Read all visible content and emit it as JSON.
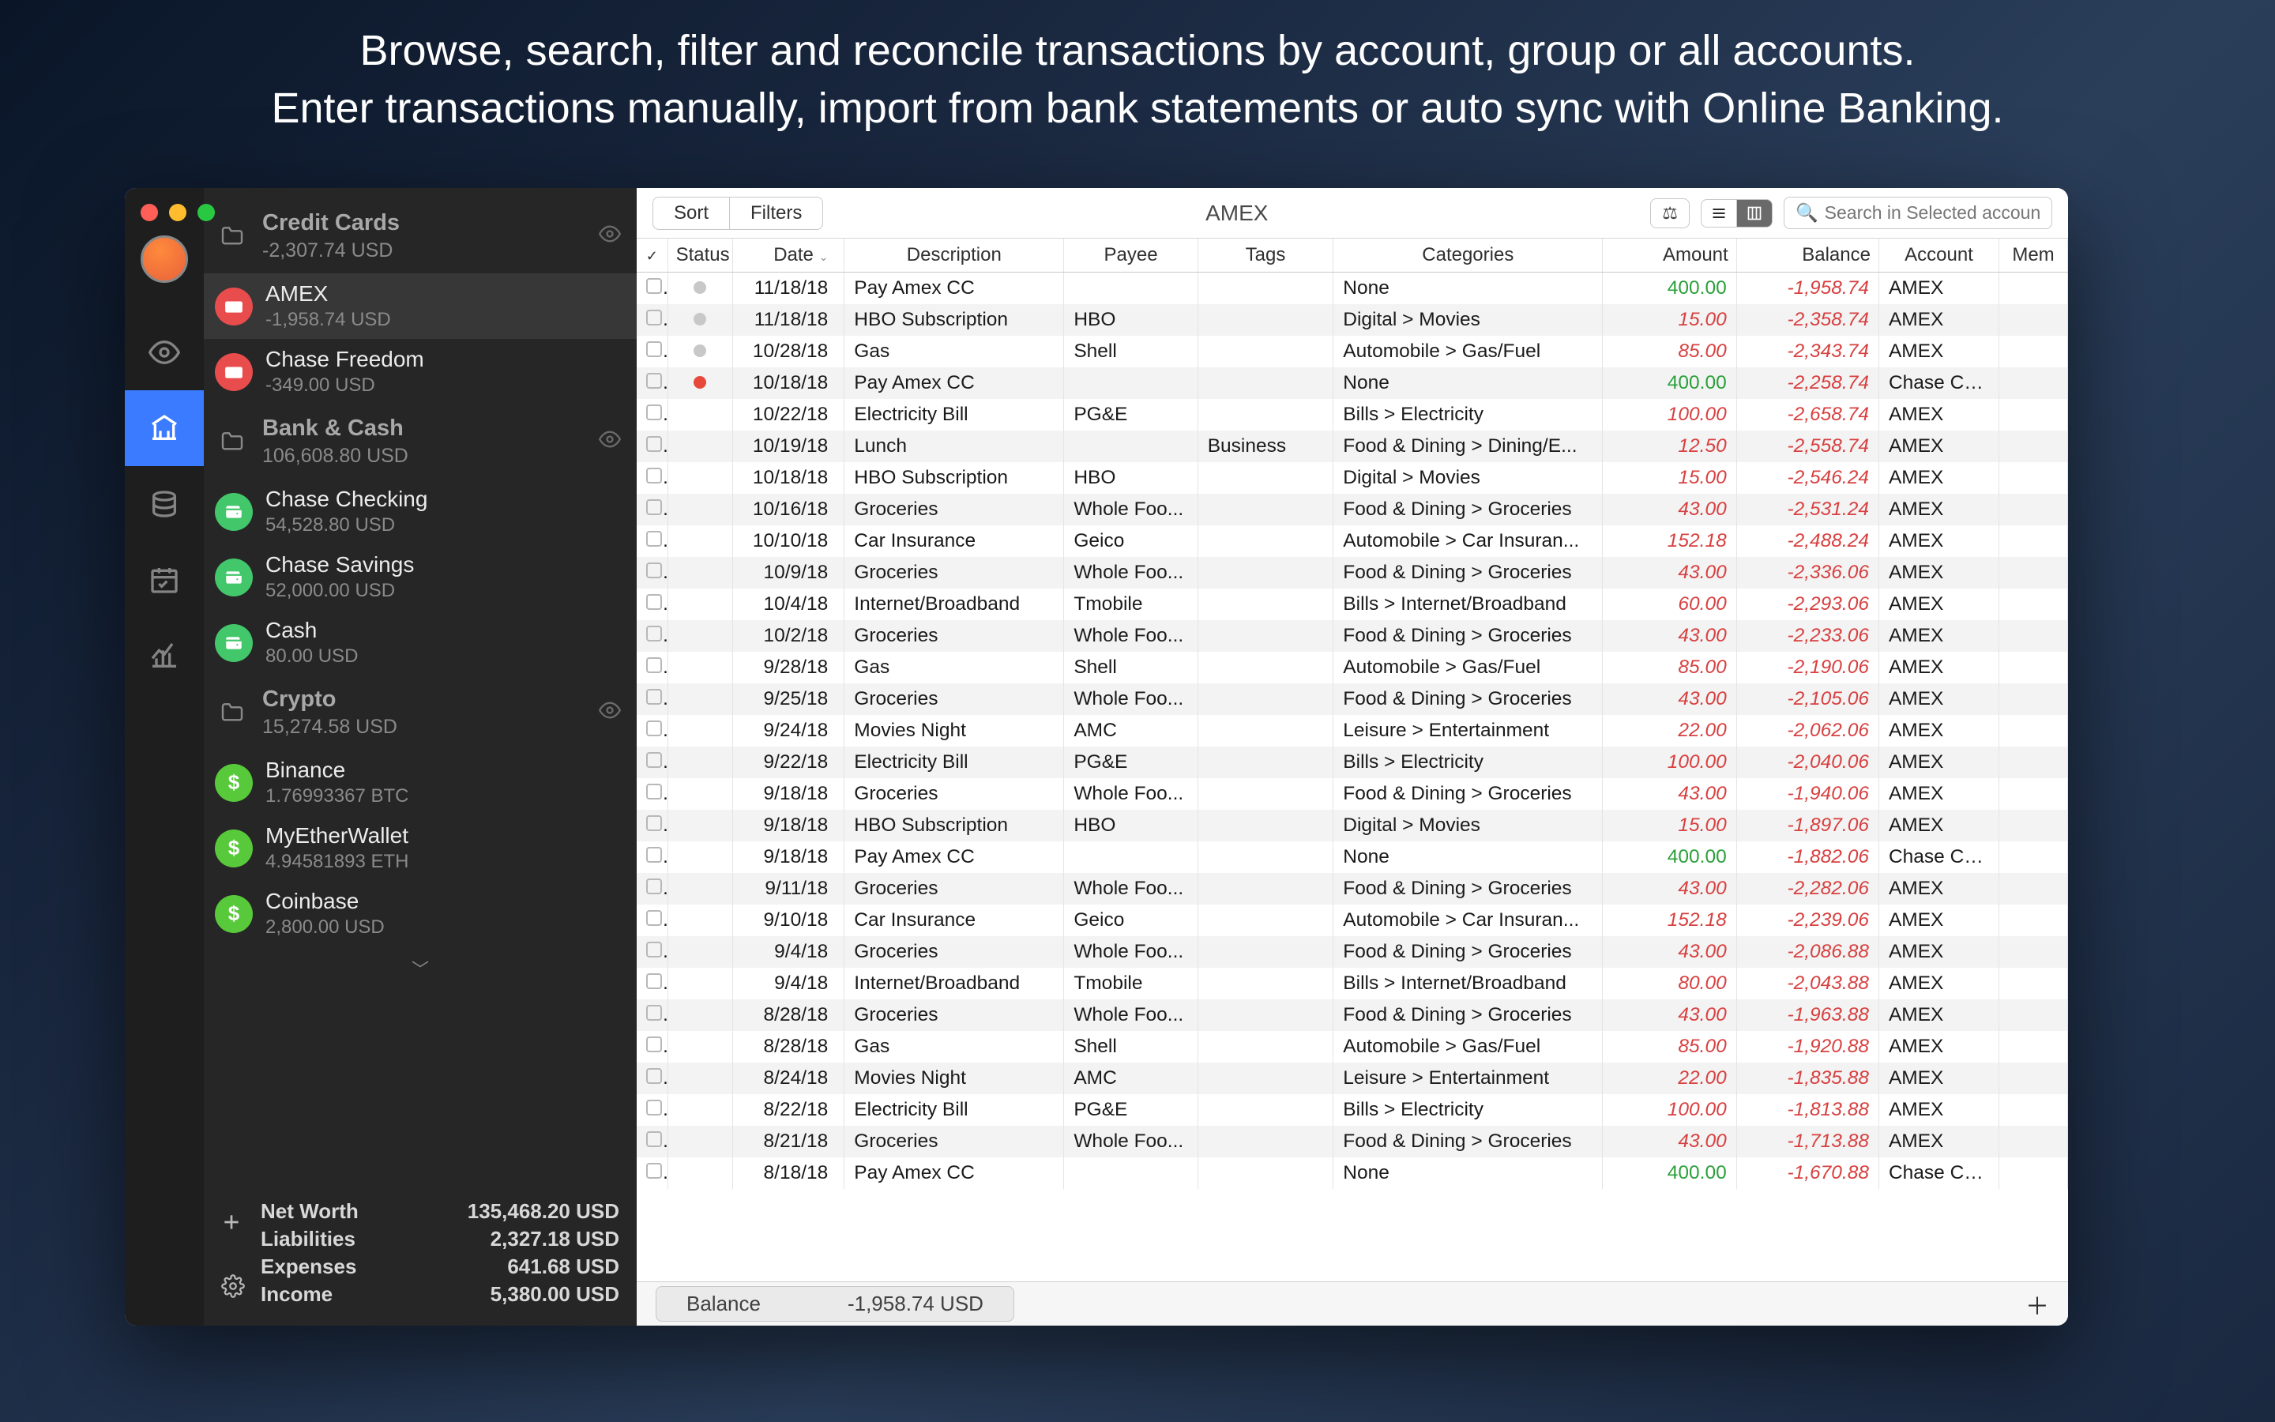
{
  "promo": {
    "line1": "Browse, search, filter and reconcile transactions by account, group or all accounts.",
    "line2": "Enter transactions manually, import from bank statements or auto sync with Online Banking."
  },
  "sidebar": {
    "groups": [
      {
        "title": "Credit Cards",
        "sub": "-2,307.74 USD",
        "icon": "folder",
        "eye": true,
        "accounts": [
          {
            "title": "AMEX",
            "sub": "-1,958.74 USD",
            "iconClass": "acct-red",
            "highlighted": true
          },
          {
            "title": "Chase Freedom",
            "sub": "-349.00 USD",
            "iconClass": "acct-red"
          }
        ]
      },
      {
        "title": "Bank & Cash",
        "sub": "106,608.80 USD",
        "icon": "folder",
        "eye": true,
        "accounts": [
          {
            "title": "Chase Checking",
            "sub": "54,528.80 USD",
            "iconClass": "acct-green"
          },
          {
            "title": "Chase Savings",
            "sub": "52,000.00 USD",
            "iconClass": "acct-green"
          },
          {
            "title": "Cash",
            "sub": "80.00 USD",
            "iconClass": "acct-green"
          }
        ]
      },
      {
        "title": "Crypto",
        "sub": "15,274.58 USD",
        "icon": "folder",
        "eye": true,
        "accounts": [
          {
            "title": "Binance",
            "sub": "1.76993367 BTC",
            "iconClass": "acct-lime"
          },
          {
            "title": "MyEtherWallet",
            "sub": "4.94581893 ETH",
            "iconClass": "acct-lime"
          },
          {
            "title": "Coinbase",
            "sub": "2,800.00 USD",
            "iconClass": "acct-lime"
          }
        ]
      }
    ],
    "footer": [
      {
        "label": "Net Worth",
        "value": "135,468.20 USD"
      },
      {
        "label": "Liabilities",
        "value": "2,327.18 USD"
      },
      {
        "label": "Expenses",
        "value": "641.68 USD"
      },
      {
        "label": "Income",
        "value": "5,380.00 USD"
      }
    ]
  },
  "toolbar": {
    "sort": "Sort",
    "filters": "Filters",
    "title": "AMEX",
    "search_placeholder": "Search in Selected account"
  },
  "columns": [
    "",
    "Status",
    "Date",
    "Description",
    "Payee",
    "Tags",
    "Categories",
    "Amount",
    "Balance",
    "Account",
    "Mem"
  ],
  "rows": [
    {
      "status": "gray",
      "date": "11/18/18",
      "desc": "Pay Amex CC",
      "payee": "",
      "tags": "",
      "cat": "None",
      "amount": "400.00",
      "amtPos": true,
      "balance": "-1,958.74",
      "acct": "AMEX"
    },
    {
      "status": "gray",
      "date": "11/18/18",
      "desc": "HBO Subscription",
      "payee": "HBO",
      "tags": "",
      "cat": "Digital > Movies",
      "amount": "15.00",
      "amtPos": false,
      "balance": "-2,358.74",
      "acct": "AMEX"
    },
    {
      "status": "gray",
      "date": "10/28/18",
      "desc": "Gas",
      "payee": "Shell",
      "tags": "",
      "cat": "Automobile > Gas/Fuel",
      "amount": "85.00",
      "amtPos": false,
      "balance": "-2,343.74",
      "acct": "AMEX"
    },
    {
      "status": "red",
      "date": "10/18/18",
      "desc": "Pay Amex CC",
      "payee": "",
      "tags": "",
      "cat": "None",
      "amount": "400.00",
      "amtPos": true,
      "balance": "-2,258.74",
      "acct": "Chase Ch..."
    },
    {
      "status": "",
      "date": "10/22/18",
      "desc": "Electricity Bill",
      "payee": "PG&E",
      "tags": "",
      "cat": "Bills > Electricity",
      "amount": "100.00",
      "amtPos": false,
      "balance": "-2,658.74",
      "acct": "AMEX"
    },
    {
      "status": "",
      "date": "10/19/18",
      "desc": "Lunch",
      "payee": "",
      "tags": "Business",
      "cat": "Food & Dining > Dining/E...",
      "amount": "12.50",
      "amtPos": false,
      "balance": "-2,558.74",
      "acct": "AMEX"
    },
    {
      "status": "",
      "date": "10/18/18",
      "desc": "HBO Subscription",
      "payee": "HBO",
      "tags": "",
      "cat": "Digital > Movies",
      "amount": "15.00",
      "amtPos": false,
      "balance": "-2,546.24",
      "acct": "AMEX"
    },
    {
      "status": "",
      "date": "10/16/18",
      "desc": "Groceries",
      "payee": "Whole Foo...",
      "tags": "",
      "cat": "Food & Dining > Groceries",
      "amount": "43.00",
      "amtPos": false,
      "balance": "-2,531.24",
      "acct": "AMEX"
    },
    {
      "status": "",
      "date": "10/10/18",
      "desc": "Car Insurance",
      "payee": "Geico",
      "tags": "",
      "cat": "Automobile > Car Insuran...",
      "amount": "152.18",
      "amtPos": false,
      "balance": "-2,488.24",
      "acct": "AMEX"
    },
    {
      "status": "",
      "date": "10/9/18",
      "desc": "Groceries",
      "payee": "Whole Foo...",
      "tags": "",
      "cat": "Food & Dining > Groceries",
      "amount": "43.00",
      "amtPos": false,
      "balance": "-2,336.06",
      "acct": "AMEX"
    },
    {
      "status": "",
      "date": "10/4/18",
      "desc": "Internet/Broadband",
      "payee": "Tmobile",
      "tags": "",
      "cat": "Bills > Internet/Broadband",
      "amount": "60.00",
      "amtPos": false,
      "balance": "-2,293.06",
      "acct": "AMEX"
    },
    {
      "status": "",
      "date": "10/2/18",
      "desc": "Groceries",
      "payee": "Whole Foo...",
      "tags": "",
      "cat": "Food & Dining > Groceries",
      "amount": "43.00",
      "amtPos": false,
      "balance": "-2,233.06",
      "acct": "AMEX"
    },
    {
      "status": "",
      "date": "9/28/18",
      "desc": "Gas",
      "payee": "Shell",
      "tags": "",
      "cat": "Automobile > Gas/Fuel",
      "amount": "85.00",
      "amtPos": false,
      "balance": "-2,190.06",
      "acct": "AMEX"
    },
    {
      "status": "",
      "date": "9/25/18",
      "desc": "Groceries",
      "payee": "Whole Foo...",
      "tags": "",
      "cat": "Food & Dining > Groceries",
      "amount": "43.00",
      "amtPos": false,
      "balance": "-2,105.06",
      "acct": "AMEX"
    },
    {
      "status": "",
      "date": "9/24/18",
      "desc": "Movies Night",
      "payee": "AMC",
      "tags": "",
      "cat": "Leisure > Entertainment",
      "amount": "22.00",
      "amtPos": false,
      "balance": "-2,062.06",
      "acct": "AMEX"
    },
    {
      "status": "",
      "date": "9/22/18",
      "desc": "Electricity Bill",
      "payee": "PG&E",
      "tags": "",
      "cat": "Bills > Electricity",
      "amount": "100.00",
      "amtPos": false,
      "balance": "-2,040.06",
      "acct": "AMEX"
    },
    {
      "status": "",
      "date": "9/18/18",
      "desc": "Groceries",
      "payee": "Whole Foo...",
      "tags": "",
      "cat": "Food & Dining > Groceries",
      "amount": "43.00",
      "amtPos": false,
      "balance": "-1,940.06",
      "acct": "AMEX"
    },
    {
      "status": "",
      "date": "9/18/18",
      "desc": "HBO Subscription",
      "payee": "HBO",
      "tags": "",
      "cat": "Digital > Movies",
      "amount": "15.00",
      "amtPos": false,
      "balance": "-1,897.06",
      "acct": "AMEX"
    },
    {
      "status": "",
      "date": "9/18/18",
      "desc": "Pay Amex CC",
      "payee": "",
      "tags": "",
      "cat": "None",
      "amount": "400.00",
      "amtPos": true,
      "balance": "-1,882.06",
      "acct": "Chase Ch..."
    },
    {
      "status": "",
      "date": "9/11/18",
      "desc": "Groceries",
      "payee": "Whole Foo...",
      "tags": "",
      "cat": "Food & Dining > Groceries",
      "amount": "43.00",
      "amtPos": false,
      "balance": "-2,282.06",
      "acct": "AMEX"
    },
    {
      "status": "",
      "date": "9/10/18",
      "desc": "Car Insurance",
      "payee": "Geico",
      "tags": "",
      "cat": "Automobile > Car Insuran...",
      "amount": "152.18",
      "amtPos": false,
      "balance": "-2,239.06",
      "acct": "AMEX"
    },
    {
      "status": "",
      "date": "9/4/18",
      "desc": "Groceries",
      "payee": "Whole Foo...",
      "tags": "",
      "cat": "Food & Dining > Groceries",
      "amount": "43.00",
      "amtPos": false,
      "balance": "-2,086.88",
      "acct": "AMEX"
    },
    {
      "status": "",
      "date": "9/4/18",
      "desc": "Internet/Broadband",
      "payee": "Tmobile",
      "tags": "",
      "cat": "Bills > Internet/Broadband",
      "amount": "80.00",
      "amtPos": false,
      "balance": "-2,043.88",
      "acct": "AMEX"
    },
    {
      "status": "",
      "date": "8/28/18",
      "desc": "Groceries",
      "payee": "Whole Foo...",
      "tags": "",
      "cat": "Food & Dining > Groceries",
      "amount": "43.00",
      "amtPos": false,
      "balance": "-1,963.88",
      "acct": "AMEX"
    },
    {
      "status": "",
      "date": "8/28/18",
      "desc": "Gas",
      "payee": "Shell",
      "tags": "",
      "cat": "Automobile > Gas/Fuel",
      "amount": "85.00",
      "amtPos": false,
      "balance": "-1,920.88",
      "acct": "AMEX"
    },
    {
      "status": "",
      "date": "8/24/18",
      "desc": "Movies Night",
      "payee": "AMC",
      "tags": "",
      "cat": "Leisure > Entertainment",
      "amount": "22.00",
      "amtPos": false,
      "balance": "-1,835.88",
      "acct": "AMEX"
    },
    {
      "status": "",
      "date": "8/22/18",
      "desc": "Electricity Bill",
      "payee": "PG&E",
      "tags": "",
      "cat": "Bills > Electricity",
      "amount": "100.00",
      "amtPos": false,
      "balance": "-1,813.88",
      "acct": "AMEX"
    },
    {
      "status": "",
      "date": "8/21/18",
      "desc": "Groceries",
      "payee": "Whole Foo...",
      "tags": "",
      "cat": "Food & Dining > Groceries",
      "amount": "43.00",
      "amtPos": false,
      "balance": "-1,713.88",
      "acct": "AMEX"
    },
    {
      "status": "",
      "date": "8/18/18",
      "desc": "Pay Amex CC",
      "payee": "",
      "tags": "",
      "cat": "None",
      "amount": "400.00",
      "amtPos": true,
      "balance": "-1,670.88",
      "acct": "Chase Ch..."
    }
  ],
  "footer": {
    "balance_label": "Balance",
    "balance_value": "-1,958.74 USD"
  },
  "colors": {
    "amount_pos": "#2aa03a",
    "amount_neg": "#d84040",
    "sidebar_bg": "#262627",
    "rail_bg": "#1e1e1e",
    "rail_active": "#3a7bff"
  }
}
